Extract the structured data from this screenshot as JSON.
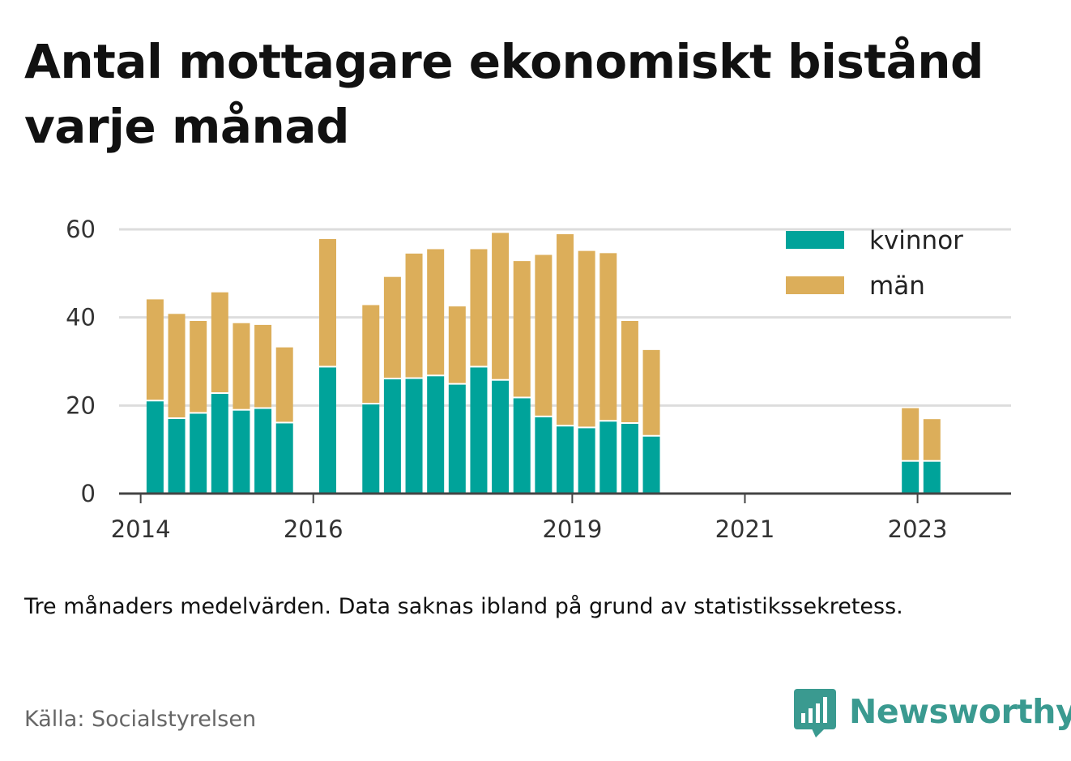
{
  "title": "Antal mottagare ekonomiskt bistånd varje månad",
  "note": "Tre månaders medelvärden. Data saknas ibland på grund av statistikssekretess.",
  "source": "Källa: Socialstyrelsen",
  "brand": {
    "name": "Newsworthy",
    "icon": "bar-chart-speech-bubble-icon"
  },
  "colors": {
    "kvinnor": "#00a39a",
    "man": "#dcae5a",
    "grid": "#dddddd",
    "axis": "#444444",
    "brand": "#3a9a90"
  },
  "chart_data": {
    "type": "bar",
    "stacked": true,
    "ylim": [
      0,
      60
    ],
    "yticks": [
      0,
      20,
      40,
      60
    ],
    "xticks": [
      "2014",
      "2016",
      "2019",
      "2021",
      "2023"
    ],
    "xlim": [
      "2013-10",
      "2024-02"
    ],
    "grid": "horizontal",
    "legend_position": "top-right",
    "categories": [
      "2014-03",
      "2014-06",
      "2014-09",
      "2014-12",
      "2015-03",
      "2015-06",
      "2015-09",
      "2016-03",
      "2016-09",
      "2016-12",
      "2017-03",
      "2017-06",
      "2017-09",
      "2017-12",
      "2018-03",
      "2018-06",
      "2018-09",
      "2018-12",
      "2019-03",
      "2019-06",
      "2019-09",
      "2019-12",
      "2020-03",
      "2022-12",
      "2023-03"
    ],
    "series": [
      {
        "name": "kvinnor",
        "values": [
          21.3,
          17.3,
          18.5,
          23.0,
          19.2,
          19.6,
          16.3,
          29.0,
          20.6,
          26.3,
          26.4,
          27.0,
          25.1,
          29.0,
          26.0,
          22.0,
          17.7,
          15.6,
          15.2,
          16.7,
          16.2,
          13.3,
          null,
          7.6,
          7.6
        ]
      },
      {
        "name": "män",
        "values": [
          22.8,
          23.5,
          20.7,
          22.7,
          19.5,
          18.7,
          16.9,
          28.8,
          22.2,
          22.9,
          28.1,
          28.5,
          17.4,
          26.5,
          33.2,
          30.8,
          36.5,
          43.3,
          39.9,
          37.9,
          23.0,
          19.3,
          null,
          11.8,
          9.3
        ]
      }
    ]
  }
}
